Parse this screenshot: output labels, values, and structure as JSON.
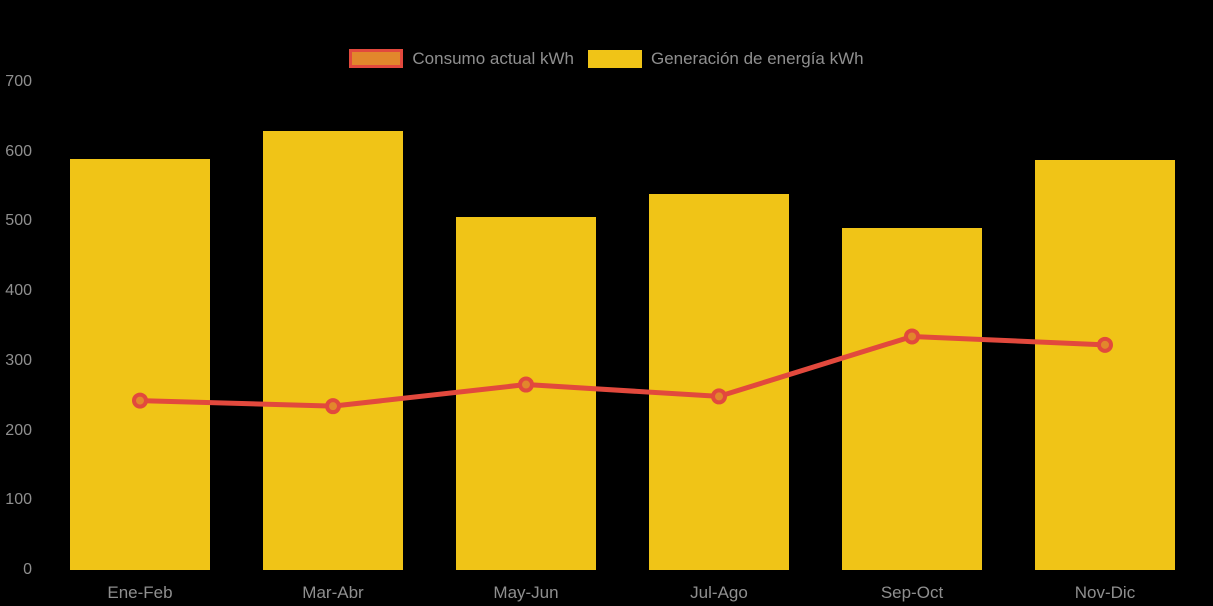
{
  "legend": {
    "items": [
      {
        "label": "Consumo actual kWh"
      },
      {
        "label": "Generación de energía kWh"
      }
    ]
  },
  "chart_data": {
    "type": "bar",
    "subtype": "bar+line combo",
    "categories": [
      "Ene-Feb",
      "Mar-Abr",
      "May-Jun",
      "Jul-Ago",
      "Sep-Oct",
      "Nov-Dic"
    ],
    "series": [
      {
        "name": "Consumo actual kWh",
        "type": "line",
        "values": [
          243,
          235,
          266,
          249,
          335,
          323
        ],
        "line_color": "#e2493d",
        "marker_fill": "#e2872c"
      },
      {
        "name": "Generación de energía kWh",
        "type": "bar",
        "values": [
          590,
          630,
          507,
          540,
          490,
          588
        ],
        "color": "#f0c417"
      }
    ],
    "title": "",
    "xlabel": "",
    "ylabel": "",
    "ylim": [
      0,
      700
    ],
    "yticks": [
      "0",
      "100",
      "200",
      "300",
      "400",
      "500",
      "600",
      "700"
    ],
    "grid": false,
    "legend_position": "top-center",
    "background_color": "#000000",
    "text_color": "#8f8f8f"
  }
}
